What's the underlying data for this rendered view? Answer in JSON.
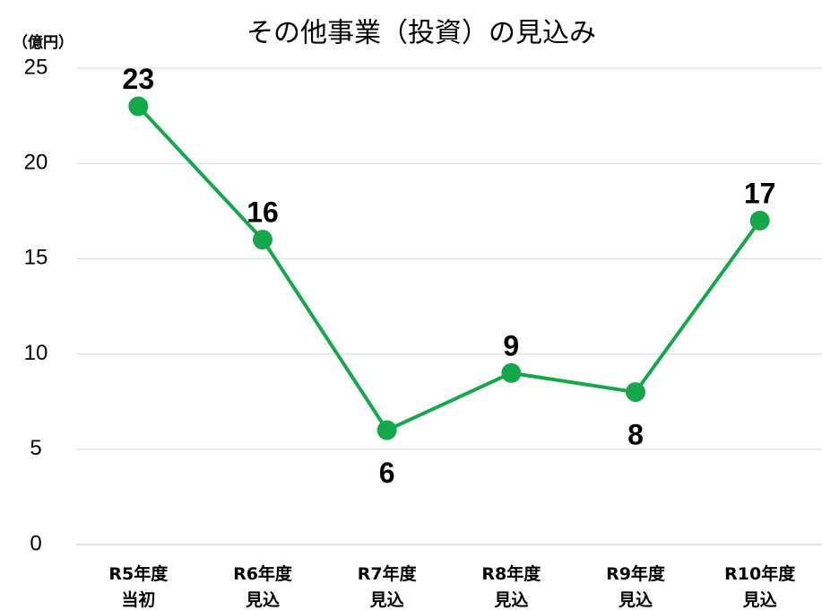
{
  "chart_data": {
    "type": "line",
    "title": "その他事業（投資）の見込み",
    "y_label": "（億円）",
    "categories": [
      "R5年度\n当初",
      "R6年度\n見込",
      "R7年度\n見込",
      "R8年度\n見込",
      "R9年度\n見込",
      "R10年度\n見込"
    ],
    "series": [
      {
        "name": "その他事業（投資）",
        "color": "#15a84a",
        "values": [
          23,
          16,
          6,
          9,
          8,
          17
        ]
      }
    ],
    "ylim": [
      0,
      25
    ],
    "yticks": [
      0,
      5,
      10,
      15,
      20,
      25
    ],
    "grid": true
  }
}
